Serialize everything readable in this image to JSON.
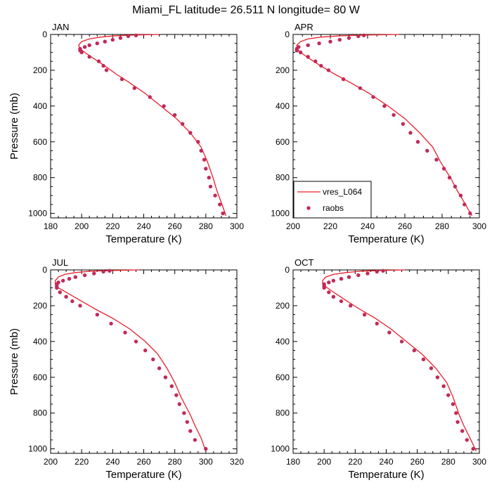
{
  "figure_title": "Miami_FL  latitude= 26.511 N longitude= 80 W",
  "colors": {
    "model_line": "#e8202a",
    "raobs_marker": "#c2295a",
    "axes": "#000000"
  },
  "legend": {
    "location": "bottom-left of APR panel",
    "line_label": "vres_L064",
    "marker_label": "raobs"
  },
  "chart_data": [
    {
      "type": "line",
      "panel": "JAN",
      "title": "JAN",
      "xlabel": "Temperature (K)",
      "ylabel": "Pressure (mb)",
      "xlim": [
        180,
        300
      ],
      "ylim": [
        1025,
        0
      ],
      "xticks": [
        180,
        200,
        220,
        240,
        260,
        280,
        300
      ],
      "yticks": [
        0,
        200,
        400,
        600,
        800,
        1000
      ],
      "series": [
        {
          "name": "vres_L064",
          "kind": "line",
          "x": [
            250,
            234,
            222,
            212,
            205,
            200,
            198,
            199,
            202,
            207,
            214,
            222,
            231,
            241,
            251,
            261,
            270,
            277,
            281,
            283,
            285,
            287,
            290,
            293
          ],
          "y": [
            0,
            3,
            7,
            15,
            25,
            40,
            60,
            80,
            100,
            130,
            170,
            220,
            270,
            330,
            400,
            470,
            550,
            630,
            710,
            760,
            810,
            870,
            940,
            1013
          ]
        },
        {
          "name": "raobs",
          "kind": "marker",
          "x": [
            235,
            230,
            225,
            220,
            215,
            210,
            205,
            202,
            199,
            199,
            200,
            205,
            211,
            214,
            216,
            226,
            234,
            244,
            253,
            260,
            265,
            270,
            275,
            277,
            279,
            280,
            282,
            283,
            286,
            289,
            291
          ],
          "y": [
            5,
            10,
            20,
            30,
            40,
            50,
            60,
            70,
            80,
            90,
            100,
            125,
            150,
            175,
            200,
            250,
            300,
            350,
            400,
            450,
            500,
            550,
            600,
            650,
            700,
            750,
            800,
            850,
            900,
            950,
            1000
          ]
        }
      ]
    },
    {
      "type": "line",
      "panel": "APR",
      "title": "APR",
      "xlabel": "Temperature (K)",
      "ylabel": "",
      "xlim": [
        200,
        300
      ],
      "ylim": [
        1025,
        0
      ],
      "xticks": [
        200,
        220,
        240,
        260,
        280,
        300
      ],
      "yticks": [
        0,
        200,
        400,
        600,
        800,
        1000
      ],
      "series": [
        {
          "name": "vres_L064",
          "kind": "line",
          "x": [
            257,
            240,
            226,
            215,
            208,
            204,
            202,
            202,
            204,
            208,
            214,
            222,
            231,
            241,
            251,
            260,
            268,
            275,
            279,
            282,
            285,
            288,
            292,
            296
          ],
          "y": [
            0,
            3,
            7,
            15,
            25,
            40,
            60,
            80,
            100,
            130,
            170,
            220,
            270,
            330,
            400,
            470,
            550,
            630,
            710,
            760,
            810,
            870,
            940,
            1013
          ]
        },
        {
          "name": "raobs",
          "kind": "marker",
          "x": [
            238,
            235,
            230,
            225,
            220,
            214,
            208,
            203,
            202,
            202,
            204,
            208,
            212,
            215,
            219,
            227,
            236,
            243,
            249,
            254,
            259,
            263,
            267,
            272,
            277,
            281,
            284,
            287,
            290,
            292,
            295
          ],
          "y": [
            5,
            10,
            20,
            30,
            40,
            50,
            60,
            70,
            80,
            90,
            100,
            125,
            150,
            175,
            200,
            250,
            300,
            350,
            400,
            450,
            500,
            550,
            600,
            650,
            700,
            750,
            800,
            850,
            900,
            950,
            1000
          ]
        }
      ]
    },
    {
      "type": "line",
      "panel": "JUL",
      "title": "JUL",
      "xlabel": "Temperature (K)",
      "ylabel": "Pressure (mb)",
      "xlim": [
        200,
        320
      ],
      "ylim": [
        1025,
        0
      ],
      "xticks": [
        200,
        220,
        240,
        260,
        280,
        300,
        320
      ],
      "yticks": [
        0,
        200,
        400,
        600,
        800,
        1000
      ],
      "series": [
        {
          "name": "vres_L064",
          "kind": "line",
          "x": [
            257,
            240,
            226,
            216,
            209,
            205,
            203,
            203,
            205,
            211,
            219,
            229,
            240,
            251,
            261,
            269,
            275,
            280,
            284,
            287,
            290,
            293,
            297,
            300
          ],
          "y": [
            0,
            3,
            7,
            15,
            25,
            40,
            60,
            80,
            100,
            130,
            170,
            220,
            270,
            330,
            400,
            470,
            550,
            630,
            710,
            760,
            810,
            870,
            940,
            1013
          ]
        },
        {
          "name": "raobs",
          "kind": "marker",
          "x": [
            238,
            234,
            228,
            222,
            216,
            212,
            208,
            205,
            204,
            204,
            204,
            206,
            210,
            214,
            219,
            230,
            239,
            248,
            255,
            261,
            266,
            270,
            274,
            278,
            281,
            283,
            286,
            288,
            290,
            293,
            300
          ],
          "y": [
            5,
            10,
            20,
            30,
            40,
            50,
            60,
            70,
            80,
            90,
            100,
            125,
            150,
            175,
            200,
            250,
            300,
            350,
            400,
            450,
            500,
            550,
            600,
            650,
            700,
            750,
            800,
            850,
            900,
            950,
            1000
          ]
        }
      ]
    },
    {
      "type": "line",
      "panel": "OCT",
      "title": "OCT",
      "xlabel": "Temperature (K)",
      "ylabel": "",
      "xlim": [
        180,
        300
      ],
      "ylim": [
        1025,
        0
      ],
      "xticks": [
        180,
        200,
        220,
        240,
        260,
        280,
        300
      ],
      "yticks": [
        0,
        200,
        400,
        600,
        800,
        1000
      ],
      "series": [
        {
          "name": "vres_L064",
          "kind": "line",
          "x": [
            252,
            236,
            224,
            214,
            206,
            201,
            199,
            199,
            202,
            207,
            214,
            223,
            233,
            243,
            253,
            263,
            272,
            279,
            283,
            285,
            287,
            290,
            294,
            298
          ],
          "y": [
            0,
            3,
            7,
            15,
            25,
            40,
            60,
            80,
            100,
            130,
            170,
            220,
            270,
            330,
            400,
            470,
            550,
            630,
            710,
            760,
            810,
            870,
            940,
            1013
          ]
        },
        {
          "name": "raobs",
          "kind": "marker",
          "x": [
            238,
            234,
            228,
            222,
            216,
            211,
            206,
            203,
            200,
            200,
            200,
            203,
            206,
            211,
            217,
            226,
            234,
            242,
            250,
            258,
            264,
            269,
            273,
            277,
            280,
            283,
            285,
            286,
            289,
            292,
            296
          ],
          "y": [
            5,
            10,
            20,
            30,
            40,
            50,
            60,
            70,
            80,
            90,
            100,
            125,
            150,
            175,
            200,
            250,
            300,
            350,
            400,
            450,
            500,
            550,
            600,
            650,
            700,
            750,
            800,
            850,
            900,
            950,
            1000
          ]
        }
      ]
    }
  ]
}
